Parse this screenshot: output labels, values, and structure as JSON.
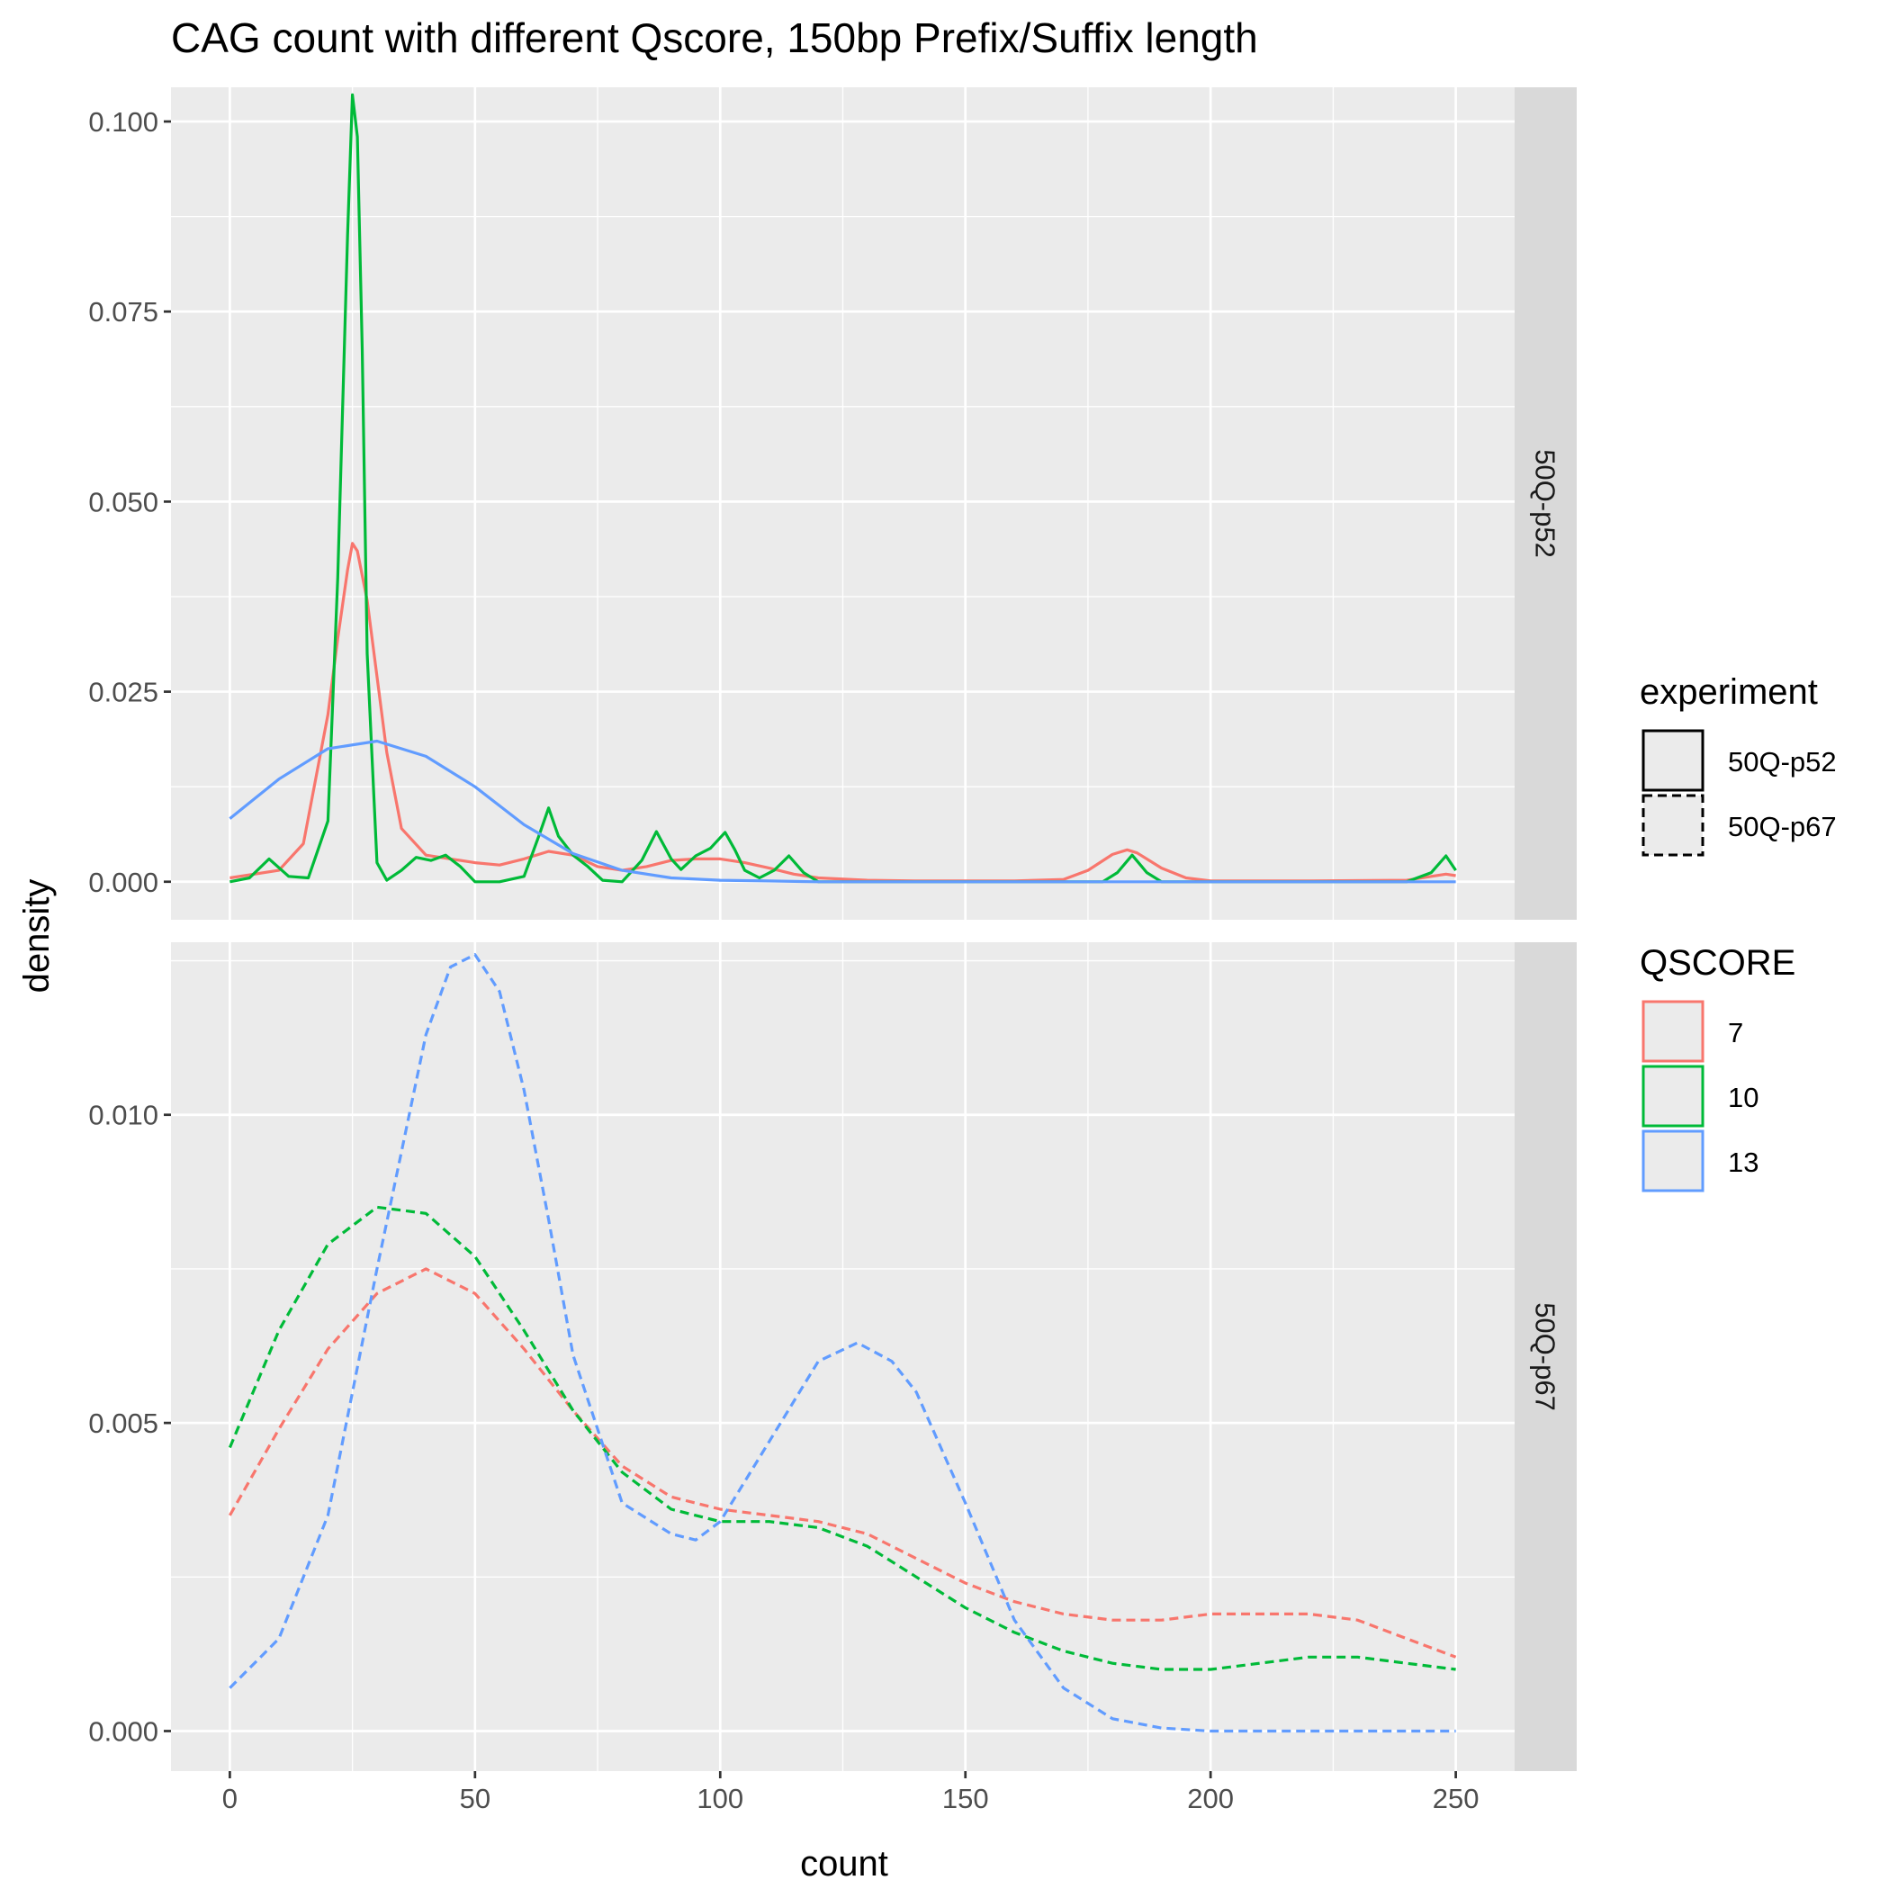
{
  "chart_data": {
    "type": "line",
    "title": "CAG count with different Qscore, 150bp Prefix/Suffix length",
    "xlabel": "count",
    "ylabel": "density",
    "xlim": [
      -12,
      262
    ],
    "x_ticks": [
      0,
      50,
      100,
      150,
      200,
      250
    ],
    "x_tick_labels": [
      "0",
      "50",
      "100",
      "150",
      "200",
      "250"
    ],
    "grid": true,
    "legend_position": "right",
    "legends": {
      "experiment": {
        "title": "experiment",
        "entries": [
          {
            "label": "50Q-p52",
            "linetype": "solid"
          },
          {
            "label": "50Q-p67",
            "linetype": "dashed"
          }
        ]
      },
      "qscore": {
        "title": "QSCORE",
        "entries": [
          {
            "label": "7",
            "color": "#F8766D"
          },
          {
            "label": "10",
            "color": "#00BA38"
          },
          {
            "label": "13",
            "color": "#619CFF"
          }
        ]
      }
    },
    "panels": [
      {
        "strip_label": "50Q-p52",
        "linetype": "solid",
        "ylim": [
          -0.005,
          0.1045
        ],
        "y_ticks": [
          0,
          0.025,
          0.05,
          0.075,
          0.1
        ],
        "y_tick_labels": [
          "0.000",
          "0.025",
          "0.050",
          "0.075",
          "0.100"
        ],
        "series": [
          {
            "name": "7",
            "color": "#F8766D",
            "x": [
              0,
              10,
              15,
              20,
              22,
              24,
              25,
              26,
              28,
              30,
              32,
              35,
              40,
              45,
              50,
              55,
              60,
              65,
              70,
              75,
              80,
              85,
              90,
              95,
              100,
              105,
              110,
              115,
              120,
              130,
              140,
              150,
              160,
              170,
              175,
              180,
              183,
              185,
              190,
              195,
              200,
              220,
              240,
              245,
              248,
              250
            ],
            "y": [
              0.0005,
              0.0015,
              0.005,
              0.022,
              0.032,
              0.041,
              0.0445,
              0.0435,
              0.037,
              0.027,
              0.017,
              0.007,
              0.0035,
              0.003,
              0.0025,
              0.0022,
              0.003,
              0.004,
              0.0035,
              0.002,
              0.0015,
              0.002,
              0.0028,
              0.003,
              0.003,
              0.0025,
              0.0018,
              0.001,
              0.0005,
              0.0002,
              0.0001,
              0.0001,
              0.0001,
              0.0003,
              0.0015,
              0.0036,
              0.0042,
              0.0038,
              0.0018,
              0.0005,
              0.0001,
              0.0001,
              0.0002,
              0.0007,
              0.001,
              0.0008
            ]
          },
          {
            "name": "10",
            "color": "#00BA38",
            "x": [
              0,
              4,
              8,
              12,
              16,
              20,
              22,
              24,
              25,
              26,
              27,
              28,
              30,
              32,
              35,
              38,
              41,
              44,
              47,
              50,
              55,
              60,
              63,
              65,
              67,
              70,
              73,
              76,
              80,
              84,
              87,
              90,
              92,
              95,
              98,
              101,
              103,
              105,
              108,
              111,
              114,
              117,
              120,
              130,
              150,
              170,
              178,
              181,
              184,
              187,
              190,
              200,
              220,
              240,
              245,
              248,
              250
            ],
            "y": [
              0,
              0.0005,
              0.003,
              0.0007,
              0.0005,
              0.008,
              0.04,
              0.085,
              0.1035,
              0.098,
              0.07,
              0.03,
              0.0025,
              0.0002,
              0.0015,
              0.0032,
              0.0028,
              0.0035,
              0.002,
              0,
              0,
              0.0007,
              0.006,
              0.0097,
              0.006,
              0.0035,
              0.002,
              0.0002,
              0,
              0.0028,
              0.0066,
              0.003,
              0.0016,
              0.0034,
              0.0044,
              0.0065,
              0.0042,
              0.0015,
              0.0005,
              0.0015,
              0.0034,
              0.0012,
              0,
              0,
              0,
              0,
              0,
              0.0012,
              0.0035,
              0.0012,
              0,
              0,
              0,
              0,
              0.0012,
              0.0034,
              0.0015
            ]
          },
          {
            "name": "13",
            "color": "#619CFF",
            "x": [
              0,
              10,
              20,
              30,
              40,
              50,
              60,
              70,
              80,
              90,
              100,
              110,
              120,
              150,
              200,
              250
            ],
            "y": [
              0.0083,
              0.0135,
              0.0175,
              0.0185,
              0.0165,
              0.0125,
              0.0075,
              0.0037,
              0.0015,
              0.0005,
              0.0002,
              0.0001,
              0,
              0,
              0,
              0
            ]
          }
        ]
      },
      {
        "strip_label": "50Q-p67",
        "linetype": "dashed",
        "ylim": [
          -0.00065,
          0.0128
        ],
        "y_ticks": [
          0,
          0.005,
          0.01
        ],
        "y_tick_labels": [
          "0.000",
          "0.005",
          "0.010"
        ],
        "series": [
          {
            "name": "7",
            "color": "#F8766D",
            "x": [
              0,
              10,
              20,
              30,
              40,
              50,
              60,
              70,
              80,
              90,
              100,
              110,
              120,
              130,
              140,
              150,
              160,
              170,
              180,
              190,
              200,
              210,
              220,
              230,
              240,
              250
            ],
            "y": [
              0.0035,
              0.0049,
              0.0062,
              0.0071,
              0.0075,
              0.0071,
              0.0062,
              0.0052,
              0.0043,
              0.0038,
              0.0036,
              0.0035,
              0.0034,
              0.0032,
              0.0028,
              0.0024,
              0.0021,
              0.0019,
              0.0018,
              0.0018,
              0.0019,
              0.0019,
              0.0019,
              0.0018,
              0.0015,
              0.0012
            ]
          },
          {
            "name": "10",
            "color": "#00BA38",
            "x": [
              0,
              10,
              20,
              30,
              40,
              50,
              60,
              70,
              80,
              90,
              100,
              110,
              120,
              130,
              140,
              150,
              160,
              170,
              180,
              190,
              200,
              210,
              220,
              230,
              240,
              250
            ],
            "y": [
              0.0046,
              0.0065,
              0.0079,
              0.0085,
              0.0084,
              0.0077,
              0.0065,
              0.0052,
              0.0042,
              0.0036,
              0.0034,
              0.0034,
              0.0033,
              0.003,
              0.0025,
              0.002,
              0.0016,
              0.0013,
              0.0011,
              0.001,
              0.001,
              0.0011,
              0.0012,
              0.0012,
              0.0011,
              0.001
            ]
          },
          {
            "name": "13",
            "color": "#619CFF",
            "x": [
              0,
              10,
              20,
              30,
              40,
              45,
              50,
              55,
              60,
              65,
              70,
              80,
              90,
              95,
              100,
              110,
              120,
              128,
              135,
              140,
              150,
              160,
              170,
              180,
              190,
              200,
              220,
              250
            ],
            "y": [
              0.0007,
              0.0015,
              0.0035,
              0.0075,
              0.0113,
              0.0124,
              0.0126,
              0.012,
              0.0104,
              0.0083,
              0.0061,
              0.0037,
              0.0032,
              0.0031,
              0.0034,
              0.0047,
              0.006,
              0.0063,
              0.006,
              0.0055,
              0.0037,
              0.0018,
              0.0007,
              0.0002,
              5e-05,
              0,
              0,
              0
            ]
          }
        ]
      }
    ]
  }
}
